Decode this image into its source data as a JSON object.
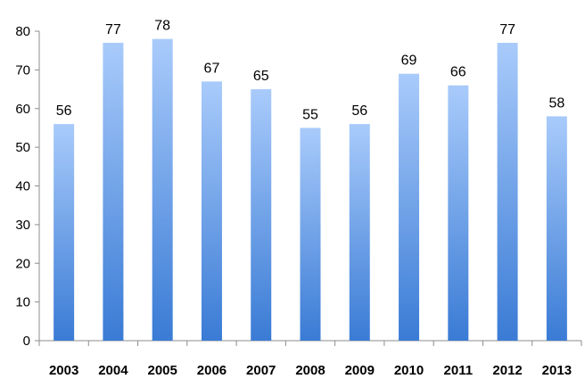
{
  "chart_data": {
    "type": "bar",
    "categories": [
      "2003",
      "2004",
      "2005",
      "2006",
      "2007",
      "2008",
      "2009",
      "2010",
      "2011",
      "2012",
      "2013"
    ],
    "values": [
      56,
      77,
      78,
      67,
      65,
      55,
      56,
      69,
      66,
      77,
      58
    ],
    "title": "",
    "xlabel": "",
    "ylabel": "",
    "ylim": [
      0,
      80
    ],
    "yticks": [
      "0",
      "10",
      "20",
      "30",
      "40",
      "50",
      "60",
      "70",
      "80"
    ],
    "grid": false,
    "legend": "none",
    "colors": {
      "bar_top": "#a9cbfb",
      "bar_bottom": "#3a7bd5",
      "axis": "#8c8c8c"
    }
  }
}
